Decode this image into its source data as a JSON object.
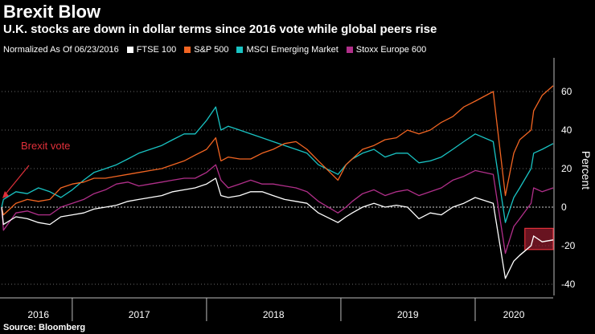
{
  "header": {
    "title": "Brexit Blow",
    "subtitle": "U.K. stocks are down in dollar terms since 2016 vote while global peers rise"
  },
  "legend": {
    "note": "Normalized As Of 06/23/2016"
  },
  "annotation": {
    "brexit_label": "Brexit vote"
  },
  "footer": {
    "source": "Source: Bloomberg"
  },
  "colors": {
    "background": "#000000",
    "ftse": "#ffffff",
    "sp500": "#f26522",
    "msci": "#19c3c3",
    "stoxx": "#b12f8a",
    "annotation": "#e0303a",
    "highlight_fill": "#8b1a2b",
    "highlight_stroke": "#e0303a",
    "grid": "#6a6a6a"
  },
  "chart_data": {
    "type": "line",
    "title": "Brexit Blow",
    "subtitle": "U.K. stocks are down in dollar terms since 2016 vote while global peers rise",
    "xlabel": "",
    "ylabel": "Percent",
    "ylim": [
      -45,
      75
    ],
    "yticks": [
      -40,
      -20,
      0,
      20,
      40,
      60
    ],
    "ytick_labels": [
      "-40",
      "-20",
      "0",
      "20",
      "40",
      "60"
    ],
    "grid": true,
    "x_axis_type": "date",
    "xlim": [
      "2016-06-23",
      "2020-07-31"
    ],
    "x_year_labels": [
      {
        "label": "2016",
        "date": "2016-10-01"
      },
      {
        "label": "2017",
        "date": "2017-07-02"
      },
      {
        "label": "2018",
        "date": "2018-07-02"
      },
      {
        "label": "2019",
        "date": "2019-07-02"
      },
      {
        "label": "2020",
        "date": "2020-04-15"
      }
    ],
    "x_year_boundaries": [
      "2017-01-01",
      "2018-01-01",
      "2019-01-01",
      "2020-01-01"
    ],
    "legend_position": "top",
    "x": [
      "2016-06-23",
      "2016-06-28",
      "2016-08-01",
      "2016-09-01",
      "2016-10-01",
      "2016-11-01",
      "2016-12-01",
      "2017-01-01",
      "2017-02-01",
      "2017-03-01",
      "2017-04-01",
      "2017-05-01",
      "2017-06-01",
      "2017-07-01",
      "2017-08-01",
      "2017-09-01",
      "2017-10-01",
      "2017-11-01",
      "2017-12-01",
      "2018-01-01",
      "2018-01-26",
      "2018-02-09",
      "2018-03-01",
      "2018-04-01",
      "2018-05-01",
      "2018-06-01",
      "2018-07-01",
      "2018-08-01",
      "2018-09-01",
      "2018-10-01",
      "2018-11-01",
      "2018-12-24",
      "2019-01-15",
      "2019-02-01",
      "2019-03-01",
      "2019-04-01",
      "2019-05-01",
      "2019-06-01",
      "2019-07-01",
      "2019-08-01",
      "2019-09-01",
      "2019-10-01",
      "2019-11-01",
      "2019-12-01",
      "2020-01-01",
      "2020-02-19",
      "2020-03-23",
      "2020-04-15",
      "2020-05-01",
      "2020-06-01",
      "2020-06-08",
      "2020-07-01",
      "2020-07-31"
    ],
    "series": [
      {
        "name": "FTSE 100",
        "color": "#ffffff",
        "values": [
          0,
          -9,
          -5,
          -6,
          -8,
          -9,
          -5,
          -4,
          -3,
          -1,
          0,
          1,
          3,
          4,
          5,
          6,
          8,
          9,
          10,
          12,
          15,
          6,
          5,
          6,
          8,
          8,
          6,
          4,
          3,
          2,
          -3,
          -8,
          -5,
          -3,
          0,
          2,
          0,
          1,
          0,
          -6,
          -3,
          -4,
          0,
          2,
          5,
          2,
          -37,
          -28,
          -25,
          -20,
          -15,
          -18,
          -17
        ]
      },
      {
        "name": "S&P 500",
        "color": "#f26522",
        "values": [
          0,
          -4,
          2,
          4,
          3,
          4,
          10,
          12,
          13,
          15,
          15,
          16,
          17,
          18,
          19,
          20,
          22,
          24,
          27,
          30,
          36,
          24,
          26,
          25,
          25,
          28,
          30,
          33,
          34,
          30,
          24,
          14,
          22,
          25,
          30,
          32,
          35,
          36,
          40,
          38,
          40,
          44,
          47,
          52,
          55,
          60,
          6,
          28,
          35,
          40,
          50,
          58,
          63
        ]
      },
      {
        "name": "MSCI Emerging Market",
        "color": "#19c3c3",
        "values": [
          0,
          4,
          8,
          7,
          10,
          8,
          5,
          9,
          14,
          18,
          20,
          22,
          25,
          28,
          30,
          32,
          35,
          38,
          38,
          45,
          52,
          40,
          42,
          40,
          38,
          36,
          34,
          32,
          30,
          28,
          22,
          17,
          22,
          25,
          28,
          30,
          26,
          28,
          28,
          23,
          24,
          26,
          30,
          34,
          38,
          34,
          -8,
          5,
          10,
          20,
          28,
          30,
          33
        ]
      },
      {
        "name": "Stoxx Europe 600",
        "color": "#b12f8a",
        "values": [
          0,
          -12,
          -3,
          -2,
          -4,
          -4,
          0,
          2,
          4,
          7,
          9,
          12,
          13,
          11,
          12,
          13,
          14,
          15,
          15,
          18,
          22,
          14,
          10,
          12,
          14,
          12,
          12,
          11,
          10,
          8,
          3,
          -3,
          0,
          3,
          7,
          9,
          6,
          8,
          9,
          6,
          8,
          10,
          14,
          16,
          19,
          17,
          -24,
          -10,
          -6,
          2,
          10,
          8,
          10
        ]
      }
    ],
    "annotations": [
      {
        "text": "Brexit vote",
        "x": "2016-06-23",
        "y": 0
      }
    ],
    "highlight": {
      "series": "FTSE 100",
      "x_range": [
        "2020-05-15",
        "2020-07-31"
      ],
      "y_range": [
        -22,
        -11
      ]
    }
  }
}
